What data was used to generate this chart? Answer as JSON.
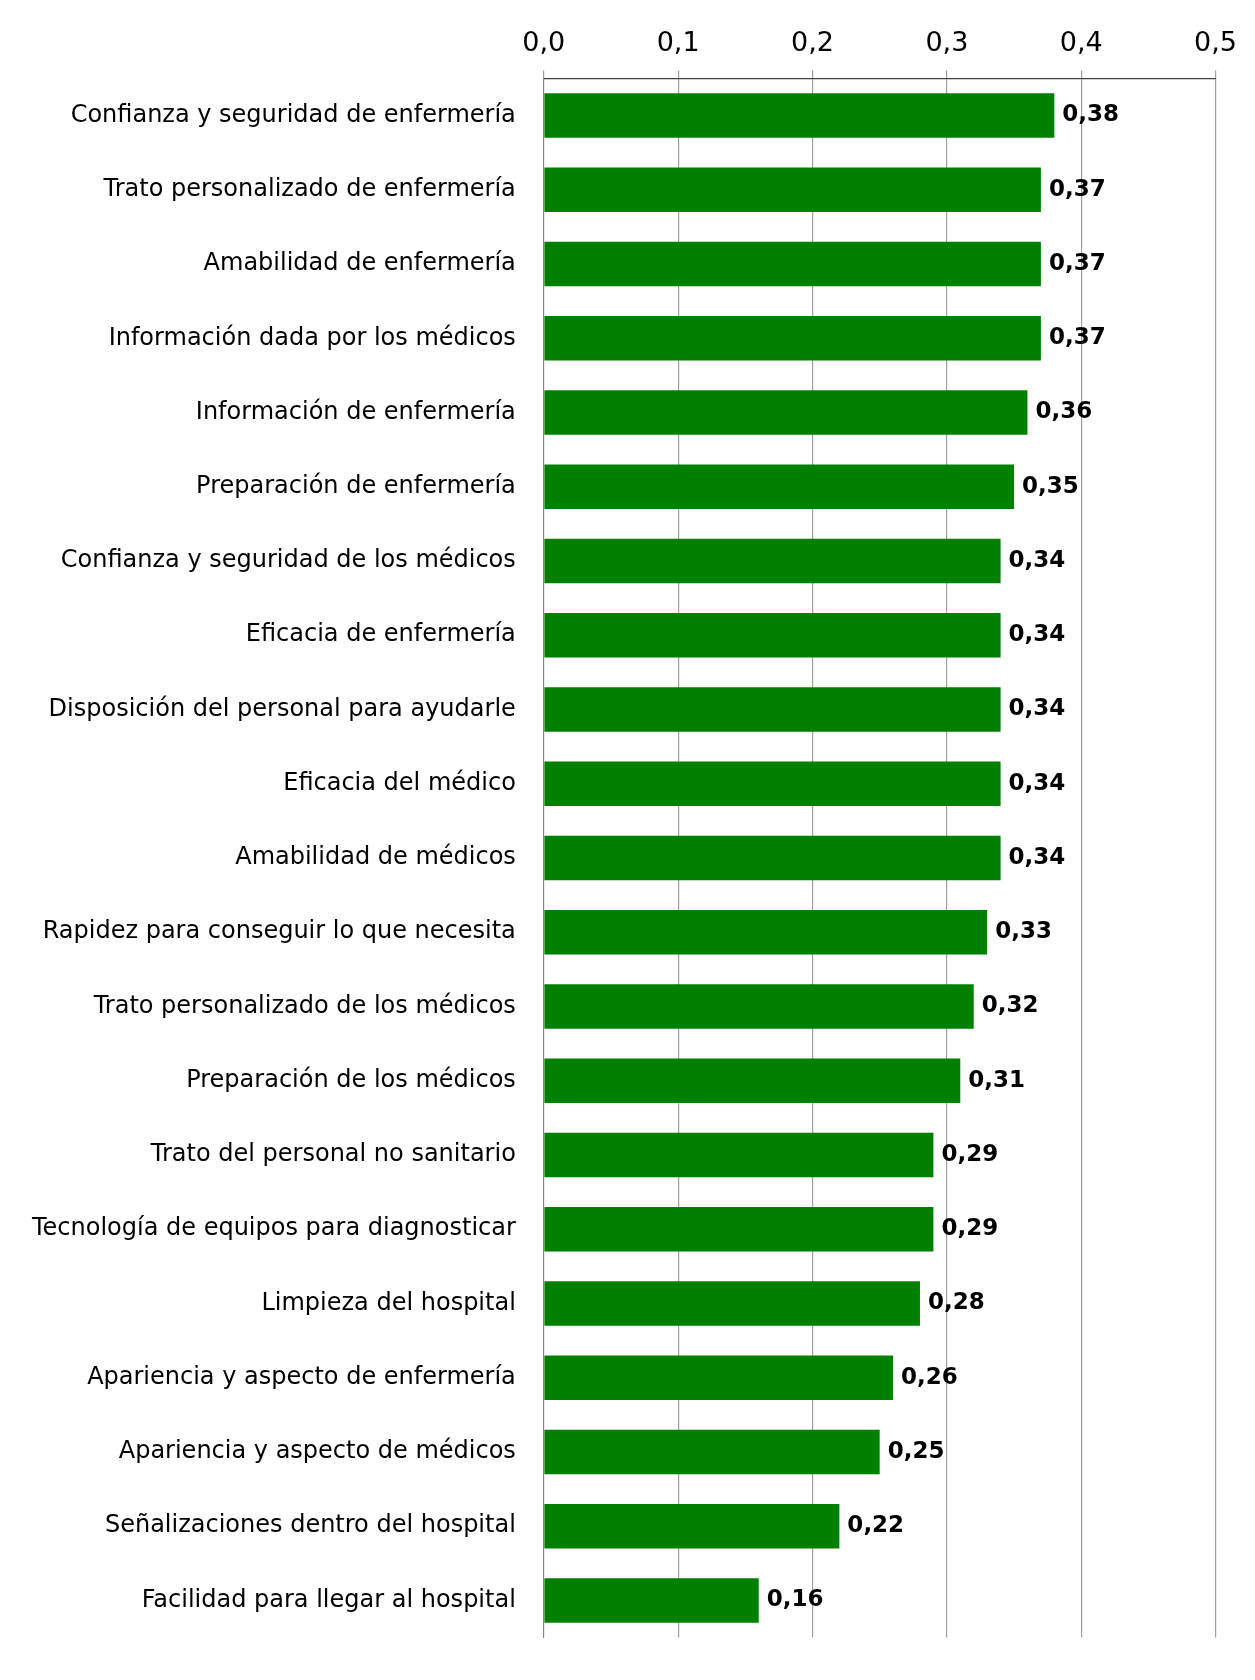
{
  "chart_data": {
    "type": "bar",
    "orientation": "horizontal",
    "categories": [
      "Confianza y seguridad de enfermería",
      "Trato personalizado de enfermería",
      "Amabilidad de enfermería",
      "Información dada por los médicos",
      "Información de enfermería",
      "Preparación de enfermería",
      "Confianza y seguridad de los médicos",
      "Eficacia de enfermería",
      "Disposición del personal para ayudarle",
      "Eficacia del médico",
      "Amabilidad de médicos",
      "Rapidez para conseguir lo que necesita",
      "Trato personalizado de los médicos",
      "Preparación de los médicos",
      "Trato del personal no sanitario",
      "Tecnología de equipos para diagnosticar",
      "Limpieza del hospital",
      "Apariencia y aspecto de enfermería",
      "Apariencia y aspecto de médicos",
      "Señalizaciones dentro del hospital",
      "Facilidad para llegar al hospital"
    ],
    "values": [
      0.38,
      0.37,
      0.37,
      0.37,
      0.36,
      0.35,
      0.34,
      0.34,
      0.34,
      0.34,
      0.34,
      0.33,
      0.32,
      0.31,
      0.29,
      0.29,
      0.28,
      0.26,
      0.25,
      0.22,
      0.16
    ],
    "value_labels": [
      "0,38",
      "0,37",
      "0,37",
      "0,37",
      "0,36",
      "0,35",
      "0,34",
      "0,34",
      "0,34",
      "0,34",
      "0,34",
      "0,33",
      "0,32",
      "0,31",
      "0,29",
      "0,29",
      "0,28",
      "0,26",
      "0,25",
      "0,22",
      "0,16"
    ],
    "color": "#008000",
    "xlim": [
      0,
      0.5
    ],
    "xticks": [
      {
        "value": 0,
        "label": "0,0"
      },
      {
        "value": 0.1,
        "label": "0,1"
      },
      {
        "value": 0.2,
        "label": "0,2"
      },
      {
        "value": 0.3,
        "label": "0,3"
      },
      {
        "value": 0.4,
        "label": "0,4"
      },
      {
        "value": 0.5,
        "label": "0,5"
      }
    ],
    "grid": "x",
    "legend": false
  }
}
